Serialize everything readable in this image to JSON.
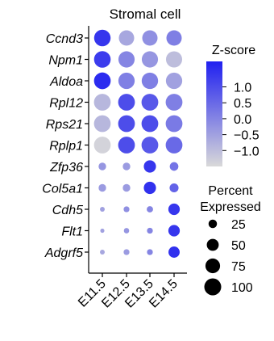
{
  "chart_data": {
    "type": "dotplot",
    "title": "Stromal cell",
    "x": [
      "E11.5",
      "E12.5",
      "E13.5",
      "E14.5"
    ],
    "genes": [
      "Ccnd3",
      "Npm1",
      "Aldoa",
      "Rpl12",
      "Rps21",
      "Rplp1",
      "Zfp36",
      "Col5a1",
      "Cdh5",
      "Flt1",
      "Adgrf5"
    ],
    "zscore": [
      [
        1.4,
        -0.6,
        -0.2,
        0.1
      ],
      [
        1.3,
        0.0,
        -0.3,
        -1.0
      ],
      [
        1.6,
        0.1,
        0.1,
        -0.5
      ],
      [
        -0.9,
        1.0,
        0.8,
        0.1
      ],
      [
        -0.9,
        1.0,
        1.0,
        0.2
      ],
      [
        -1.4,
        1.0,
        0.8,
        0.5
      ],
      [
        -0.3,
        -0.4,
        1.4,
        0.3
      ],
      [
        -0.4,
        -0.4,
        1.5,
        0.6
      ],
      [
        -0.5,
        -0.2,
        0.0,
        1.4
      ],
      [
        -0.5,
        -0.3,
        0.0,
        1.4
      ],
      [
        -0.6,
        -0.4,
        0.0,
        1.5
      ]
    ],
    "percent_expressed": [
      [
        95,
        82,
        82,
        82
      ],
      [
        96,
        92,
        92,
        91
      ],
      [
        97,
        93,
        94,
        93
      ],
      [
        98,
        98,
        98,
        98
      ],
      [
        98,
        98,
        98,
        98
      ],
      [
        98,
        98,
        98,
        98
      ],
      [
        20,
        20,
        52,
        26
      ],
      [
        20,
        20,
        52,
        28
      ],
      [
        8,
        12,
        14,
        46
      ],
      [
        6,
        10,
        12,
        46
      ],
      [
        8,
        12,
        12,
        44
      ]
    ],
    "colorbar": {
      "title": "Z-score",
      "ticks": [
        "1.0",
        "0.5",
        "0.0",
        "−0.5",
        "−1.0"
      ],
      "tick_values": [
        1.0,
        0.5,
        0.0,
        -0.5,
        -1.0
      ],
      "range": [
        -1.5,
        1.8
      ],
      "low_color": "#d9d9d9",
      "high_color": "#2020f0"
    },
    "size_legend": {
      "title_line1": "Percent",
      "title_line2": "Expressed",
      "values": [
        25,
        50,
        75,
        100
      ]
    }
  }
}
